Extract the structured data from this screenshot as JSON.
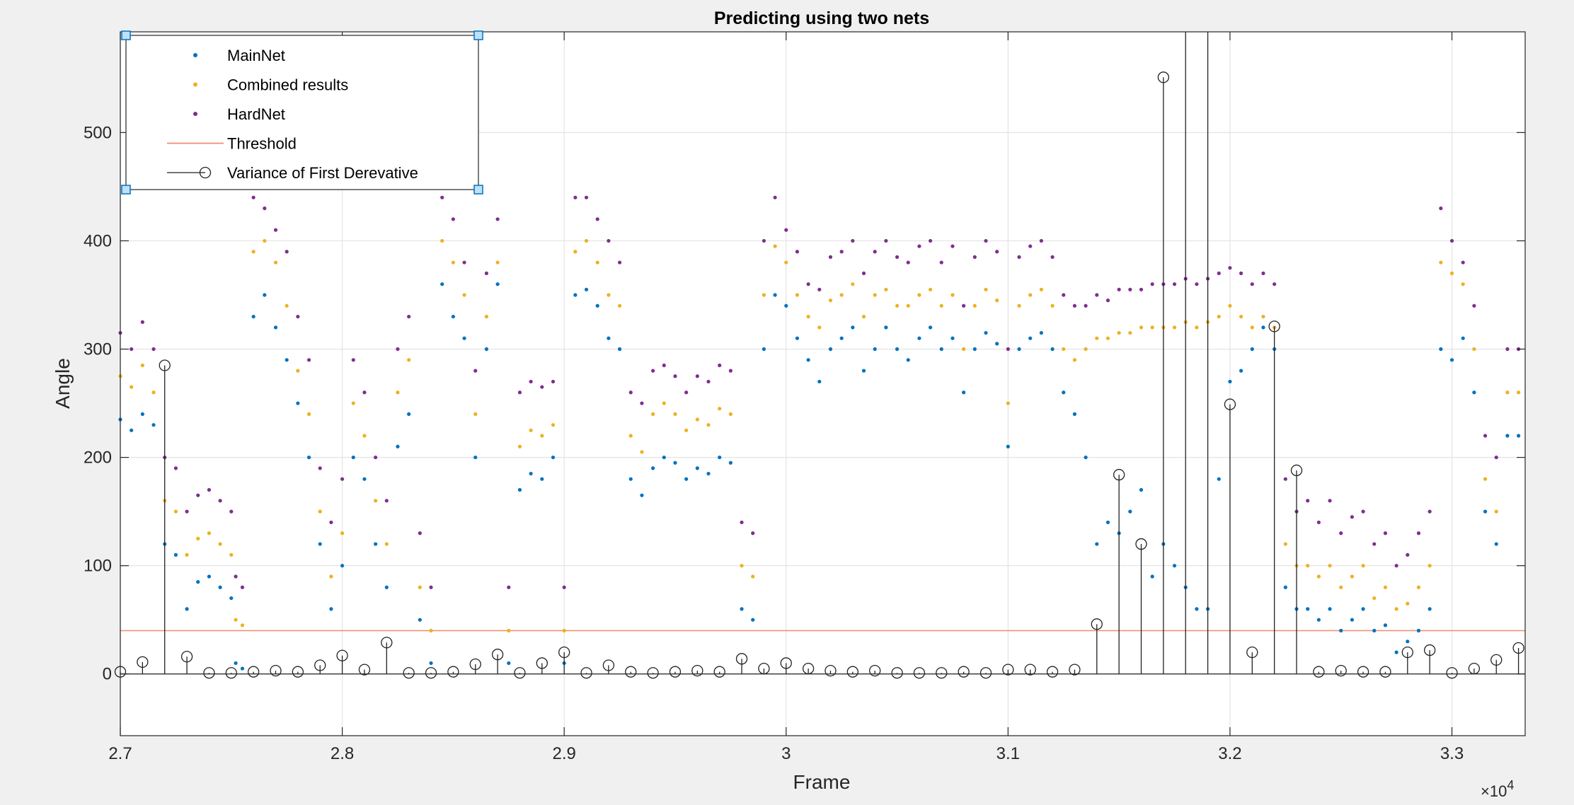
{
  "chart_data": {
    "type": "scatter",
    "title": "Predicting using two nets",
    "xlabel": "Frame",
    "ylabel": "Angle",
    "xlim": [
      27000,
      33330
    ],
    "ylim": [
      -57,
      593
    ],
    "x_exponent_label": "×10",
    "x_exponent_power": "4",
    "x_ticks": [
      {
        "value": 27000,
        "label": "2.7"
      },
      {
        "value": 28000,
        "label": "2.8"
      },
      {
        "value": 29000,
        "label": "2.9"
      },
      {
        "value": 30000,
        "label": "3"
      },
      {
        "value": 31000,
        "label": "3.1"
      },
      {
        "value": 32000,
        "label": "3.2"
      },
      {
        "value": 33000,
        "label": "3.3"
      }
    ],
    "y_ticks": [
      {
        "value": 0,
        "label": "0"
      },
      {
        "value": 100,
        "label": "100"
      },
      {
        "value": 200,
        "label": "200"
      },
      {
        "value": 300,
        "label": "300"
      },
      {
        "value": 400,
        "label": "400"
      },
      {
        "value": 500,
        "label": "500"
      }
    ],
    "grid": true,
    "legend_position": "top-left",
    "legend": [
      {
        "label": "MainNet",
        "marker": "dot",
        "color": "#0072BD"
      },
      {
        "label": "Combined results",
        "marker": "dot",
        "color": "#EDB120"
      },
      {
        "label": "HardNet",
        "marker": "dot",
        "color": "#7E2F8E"
      },
      {
        "label": "Threshold",
        "marker": "line",
        "color": "#F08B70"
      },
      {
        "label": "Variance of First Derevative",
        "marker": "stem",
        "color": "#222222"
      }
    ],
    "series": [
      {
        "name": "MainNet",
        "color": "#0072BD",
        "x": [
          27000,
          27050,
          27100,
          27150,
          27200,
          27250,
          27300,
          27350,
          27400,
          27450,
          27500,
          27520,
          27550,
          27600,
          27650,
          27700,
          27750,
          27800,
          27850,
          27900,
          27950,
          28000,
          28050,
          28100,
          28150,
          28200,
          28250,
          28300,
          28350,
          28400,
          28450,
          28500,
          28550,
          28600,
          28650,
          28700,
          28750,
          28800,
          28850,
          28900,
          28950,
          29000,
          29050,
          29100,
          29150,
          29200,
          29250,
          29300,
          29350,
          29400,
          29450,
          29500,
          29550,
          29600,
          29650,
          29700,
          29750,
          29800,
          29850,
          29900,
          29950,
          30000,
          30050,
          30100,
          30150,
          30200,
          30250,
          30300,
          30350,
          30400,
          30450,
          30500,
          30550,
          30600,
          30650,
          30700,
          30750,
          30800,
          30850,
          30900,
          30950,
          31000,
          31050,
          31100,
          31150,
          31200,
          31250,
          31300,
          31350,
          31400,
          31450,
          31500,
          31550,
          31600,
          31650,
          31700,
          31750,
          31800,
          31850,
          31900,
          31950,
          32000,
          32050,
          32100,
          32150,
          32200,
          32250,
          32300,
          32350,
          32400,
          32450,
          32500,
          32550,
          32600,
          32650,
          32700,
          32750,
          32800,
          32850,
          32900,
          32950,
          33000,
          33050,
          33100,
          33150,
          33200,
          33250,
          33300
        ],
        "y": [
          235,
          225,
          240,
          230,
          120,
          110,
          60,
          85,
          90,
          80,
          70,
          10,
          5,
          330,
          350,
          320,
          290,
          250,
          200,
          120,
          60,
          100,
          200,
          180,
          120,
          80,
          210,
          240,
          50,
          10,
          360,
          330,
          310,
          200,
          300,
          360,
          10,
          170,
          185,
          180,
          200,
          10,
          350,
          355,
          340,
          310,
          300,
          180,
          165,
          190,
          200,
          195,
          180,
          190,
          185,
          200,
          195,
          60,
          50,
          300,
          350,
          340,
          310,
          290,
          270,
          300,
          310,
          320,
          280,
          300,
          320,
          300,
          290,
          310,
          320,
          300,
          310,
          260,
          300,
          315,
          305,
          210,
          300,
          310,
          315,
          300,
          260,
          240,
          200,
          120,
          140,
          130,
          150,
          170,
          90,
          120,
          100,
          80,
          60,
          60,
          180,
          270,
          280,
          300,
          320,
          300,
          80,
          60,
          60,
          50,
          60,
          40,
          50,
          60,
          40,
          45,
          20,
          30,
          40,
          60,
          300,
          290,
          310,
          260,
          150,
          120,
          220,
          220
        ]
      },
      {
        "name": "Combined results",
        "color": "#EDB120",
        "x": [
          27000,
          27050,
          27100,
          27150,
          27200,
          27250,
          27300,
          27350,
          27400,
          27450,
          27500,
          27520,
          27550,
          27600,
          27650,
          27700,
          27750,
          27800,
          27850,
          27900,
          27950,
          28000,
          28050,
          28100,
          28150,
          28200,
          28250,
          28300,
          28350,
          28400,
          28450,
          28500,
          28550,
          28600,
          28650,
          28700,
          28750,
          28800,
          28850,
          28900,
          28950,
          29000,
          29050,
          29100,
          29150,
          29200,
          29250,
          29300,
          29350,
          29400,
          29450,
          29500,
          29550,
          29600,
          29650,
          29700,
          29750,
          29800,
          29850,
          29900,
          29950,
          30000,
          30050,
          30100,
          30150,
          30200,
          30250,
          30300,
          30350,
          30400,
          30450,
          30500,
          30550,
          30600,
          30650,
          30700,
          30750,
          30800,
          30850,
          30900,
          30950,
          31000,
          31050,
          31100,
          31150,
          31200,
          31250,
          31300,
          31350,
          31400,
          31450,
          31500,
          31550,
          31600,
          31650,
          31700,
          31750,
          31800,
          31850,
          31900,
          31950,
          32000,
          32050,
          32100,
          32150,
          32200,
          32250,
          32300,
          32350,
          32400,
          32450,
          32500,
          32550,
          32600,
          32650,
          32700,
          32750,
          32800,
          32850,
          32900,
          32950,
          33000,
          33050,
          33100,
          33150,
          33200,
          33250,
          33300
        ],
        "y": [
          275,
          265,
          285,
          260,
          160,
          150,
          110,
          125,
          130,
          120,
          110,
          50,
          45,
          390,
          400,
          380,
          340,
          280,
          240,
          150,
          90,
          130,
          250,
          220,
          160,
          120,
          260,
          290,
          80,
          40,
          400,
          380,
          350,
          240,
          330,
          380,
          40,
          210,
          225,
          220,
          230,
          40,
          390,
          400,
          380,
          350,
          340,
          220,
          205,
          240,
          250,
          240,
          225,
          235,
          230,
          245,
          240,
          100,
          90,
          350,
          395,
          380,
          350,
          330,
          320,
          345,
          350,
          360,
          330,
          350,
          355,
          340,
          340,
          350,
          355,
          340,
          350,
          300,
          340,
          355,
          345,
          250,
          340,
          350,
          355,
          340,
          300,
          290,
          300,
          310,
          310,
          315,
          315,
          320,
          320,
          320,
          320,
          325,
          320,
          325,
          330,
          340,
          330,
          320,
          330,
          320,
          120,
          100,
          100,
          90,
          100,
          80,
          90,
          100,
          70,
          80,
          60,
          65,
          80,
          100,
          380,
          370,
          360,
          300,
          180,
          150,
          260,
          260
        ]
      },
      {
        "name": "HardNet",
        "color": "#7E2F8E",
        "x": [
          27000,
          27050,
          27100,
          27150,
          27200,
          27250,
          27300,
          27350,
          27400,
          27450,
          27500,
          27520,
          27550,
          27600,
          27650,
          27700,
          27750,
          27800,
          27850,
          27900,
          27950,
          28000,
          28050,
          28100,
          28150,
          28200,
          28250,
          28300,
          28350,
          28400,
          28450,
          28500,
          28550,
          28600,
          28650,
          28700,
          28750,
          28800,
          28850,
          28900,
          28950,
          29000,
          29050,
          29100,
          29150,
          29200,
          29250,
          29300,
          29350,
          29400,
          29450,
          29500,
          29550,
          29600,
          29650,
          29700,
          29750,
          29800,
          29850,
          29900,
          29950,
          30000,
          30050,
          30100,
          30150,
          30200,
          30250,
          30300,
          30350,
          30400,
          30450,
          30500,
          30550,
          30600,
          30650,
          30700,
          30750,
          30800,
          30850,
          30900,
          30950,
          31000,
          31050,
          31100,
          31150,
          31200,
          31250,
          31300,
          31350,
          31400,
          31450,
          31500,
          31550,
          31600,
          31650,
          31700,
          31750,
          31800,
          31850,
          31900,
          31950,
          32000,
          32050,
          32100,
          32150,
          32200,
          32250,
          32300,
          32350,
          32400,
          32450,
          32500,
          32550,
          32600,
          32650,
          32700,
          32750,
          32800,
          32850,
          32900,
          32950,
          33000,
          33050,
          33100,
          33150,
          33200,
          33250,
          33300
        ],
        "y": [
          315,
          300,
          325,
          300,
          200,
          190,
          150,
          165,
          170,
          160,
          150,
          90,
          80,
          440,
          430,
          410,
          390,
          330,
          290,
          190,
          140,
          180,
          290,
          260,
          200,
          160,
          300,
          330,
          130,
          80,
          440,
          420,
          380,
          280,
          370,
          420,
          80,
          260,
          270,
          265,
          270,
          80,
          440,
          440,
          420,
          400,
          380,
          260,
          250,
          280,
          285,
          275,
          260,
          275,
          270,
          285,
          280,
          140,
          130,
          400,
          440,
          410,
          390,
          360,
          355,
          385,
          390,
          400,
          370,
          390,
          400,
          385,
          380,
          395,
          400,
          380,
          395,
          340,
          385,
          400,
          390,
          300,
          385,
          395,
          400,
          385,
          350,
          340,
          340,
          350,
          345,
          355,
          355,
          355,
          360,
          360,
          360,
          365,
          360,
          365,
          370,
          375,
          370,
          360,
          370,
          360,
          180,
          150,
          160,
          140,
          160,
          130,
          145,
          150,
          120,
          130,
          100,
          110,
          130,
          150,
          430,
          400,
          380,
          340,
          220,
          200,
          300,
          300
        ]
      }
    ],
    "threshold": {
      "name": "Threshold",
      "value": 40
    },
    "stems": {
      "name": "Variance of First Derevative",
      "x": [
        27000,
        27100,
        27200,
        27300,
        27400,
        27500,
        27600,
        27700,
        27800,
        27900,
        28000,
        28100,
        28200,
        28300,
        28400,
        28500,
        28600,
        28700,
        28800,
        28900,
        29000,
        29100,
        29200,
        29300,
        29400,
        29500,
        29600,
        29700,
        29800,
        29900,
        30000,
        30100,
        30200,
        30300,
        30400,
        30500,
        30600,
        30700,
        30800,
        30900,
        31000,
        31100,
        31200,
        31300,
        31400,
        31500,
        31600,
        31700,
        31800,
        31900,
        32000,
        32100,
        32200,
        32300,
        32400,
        32500,
        32600,
        32700,
        32800,
        32900,
        33000,
        33100,
        33200,
        33300
      ],
      "y": [
        2,
        11,
        285,
        16,
        1,
        1,
        2,
        3,
        2,
        8,
        17,
        4,
        29,
        1,
        1,
        2,
        9,
        18,
        1,
        10,
        20,
        1,
        8,
        2,
        1,
        2,
        3,
        2,
        14,
        5,
        10,
        5,
        3,
        2,
        3,
        1,
        1,
        1,
        2,
        1,
        4,
        4,
        2,
        4,
        46,
        184,
        120,
        551,
        593,
        593,
        249,
        20,
        321,
        188,
        2,
        3,
        2,
        2,
        20,
        22,
        1,
        5,
        13,
        24
      ]
    }
  }
}
